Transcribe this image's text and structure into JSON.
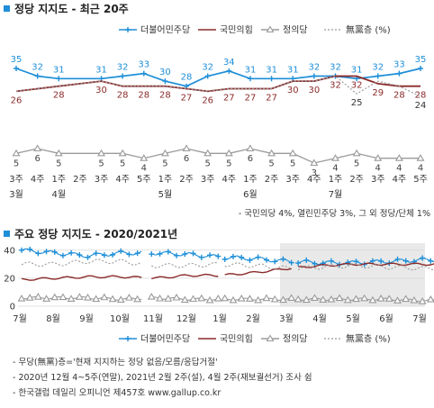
{
  "chart1": {
    "title": "정당 지지도 - 최근 20주",
    "legend": [
      {
        "name": "더불어민주당",
        "color": "#1e8fd8"
      },
      {
        "name": "국민의힘",
        "color": "#8b2a2a"
      },
      {
        "name": "정의당",
        "color": "#9a9a9a"
      },
      {
        "name": "無黨층 (%)",
        "color": "#9a9a9a"
      }
    ],
    "week_labels": [
      "3주",
      "4주",
      "1주",
      "2주",
      "3주",
      "4주",
      "5주",
      "1주",
      "2주",
      "3주",
      "4주",
      "1주",
      "2주",
      "3주",
      "4주",
      "1주",
      "2주",
      "3주",
      "4주",
      "5주"
    ],
    "month_labels": [
      {
        "label": "3월",
        "index": 0
      },
      {
        "label": "4월",
        "index": 2
      },
      {
        "label": "5월",
        "index": 7
      },
      {
        "label": "6월",
        "index": 11
      },
      {
        "label": "7월",
        "index": 15
      }
    ],
    "footnote": "- 국민의당 4%, 열린민주당 3%, 그 외 정당/단체 1%"
  },
  "chart2": {
    "title": "주요 정당 지지도 - 2020/2021년",
    "y_ticks": [
      "40",
      "20",
      "0"
    ],
    "month_labels": [
      "7월",
      "8월",
      "9월",
      "10월",
      "11월",
      "12월",
      "1월",
      "2월",
      "3월",
      "4월",
      "5월",
      "6월",
      "7월"
    ],
    "legend": [
      {
        "name": "더불어민주당",
        "color": "#1e8fd8"
      },
      {
        "name": "국민의힘",
        "color": "#8b2a2a"
      },
      {
        "name": "정의당",
        "color": "#9a9a9a"
      },
      {
        "name": "無黨층 (%)",
        "color": "#9a9a9a"
      }
    ]
  },
  "notes": [
    "- 무당(無黨)층='현재 지지하는 정당 없음/모름/응답거절'",
    "- 2020년 12월 4~5주(연말), 2021년 2월 2주(설), 4월 2주(재보궐선거) 조사 쉼",
    "- 한국갤럽 데일리 오피니언 제457호 www.gallup.co.kr"
  ],
  "chart_data": [
    {
      "type": "line",
      "title": "정당 지지도 - 최근 20주",
      "categories": [
        "3주",
        "4주",
        "1주",
        "2주",
        "3주",
        "4주",
        "5주",
        "1주",
        "2주",
        "3주",
        "4주",
        "1주",
        "2주",
        "3주",
        "4주",
        "1주",
        "2주",
        "3주",
        "4주",
        "5주"
      ],
      "series": [
        {
          "name": "더불어민주당",
          "values": [
            35,
            32,
            31,
            null,
            31,
            32,
            33,
            30,
            28,
            32,
            34,
            31,
            31,
            31,
            32,
            32,
            31,
            32,
            33,
            35
          ]
        },
        {
          "name": "국민의힘",
          "values": [
            26,
            null,
            28,
            null,
            30,
            28,
            28,
            28,
            27,
            26,
            27,
            27,
            27,
            30,
            30,
            32,
            32,
            29,
            28,
            28
          ]
        },
        {
          "name": "정의당",
          "values": [
            5,
            6,
            5,
            null,
            5,
            5,
            4,
            5,
            6,
            5,
            5,
            6,
            5,
            5,
            3,
            4,
            5,
            4,
            4,
            4
          ]
        },
        {
          "name": "無黨층 (%)",
          "values": [
            26,
            27,
            28,
            null,
            30,
            28,
            28,
            28,
            27,
            26,
            27,
            27,
            27,
            30,
            30,
            32,
            25,
            30,
            28,
            24
          ]
        }
      ],
      "ylim": [
        0,
        40
      ]
    },
    {
      "type": "line",
      "title": "주요 정당 지지도 - 2020/2021년",
      "categories": [
        "7월",
        "8월",
        "9월",
        "10월",
        "11월",
        "12월",
        "1월",
        "2월",
        "3월",
        "4월",
        "5월",
        "6월",
        "7월"
      ],
      "series": [
        {
          "name": "더불어민주당",
          "values": [
            40,
            38,
            36,
            38,
            38,
            37,
            35,
            34,
            32,
            31,
            31,
            32,
            33
          ]
        },
        {
          "name": "국민의힘",
          "values": [
            19,
            20,
            21,
            21,
            20,
            22,
            22,
            24,
            27,
            29,
            30,
            30,
            30
          ]
        },
        {
          "name": "정의당",
          "values": [
            6,
            6,
            6,
            5,
            6,
            5,
            5,
            5,
            5,
            5,
            5,
            5,
            4
          ]
        },
        {
          "name": "無黨층 (%)",
          "values": [
            30,
            30,
            32,
            32,
            29,
            29,
            30,
            29,
            27,
            28,
            29,
            28,
            27
          ]
        }
      ],
      "y_ticks": [
        0,
        20,
        40
      ],
      "ylim": [
        0,
        45
      ]
    }
  ]
}
